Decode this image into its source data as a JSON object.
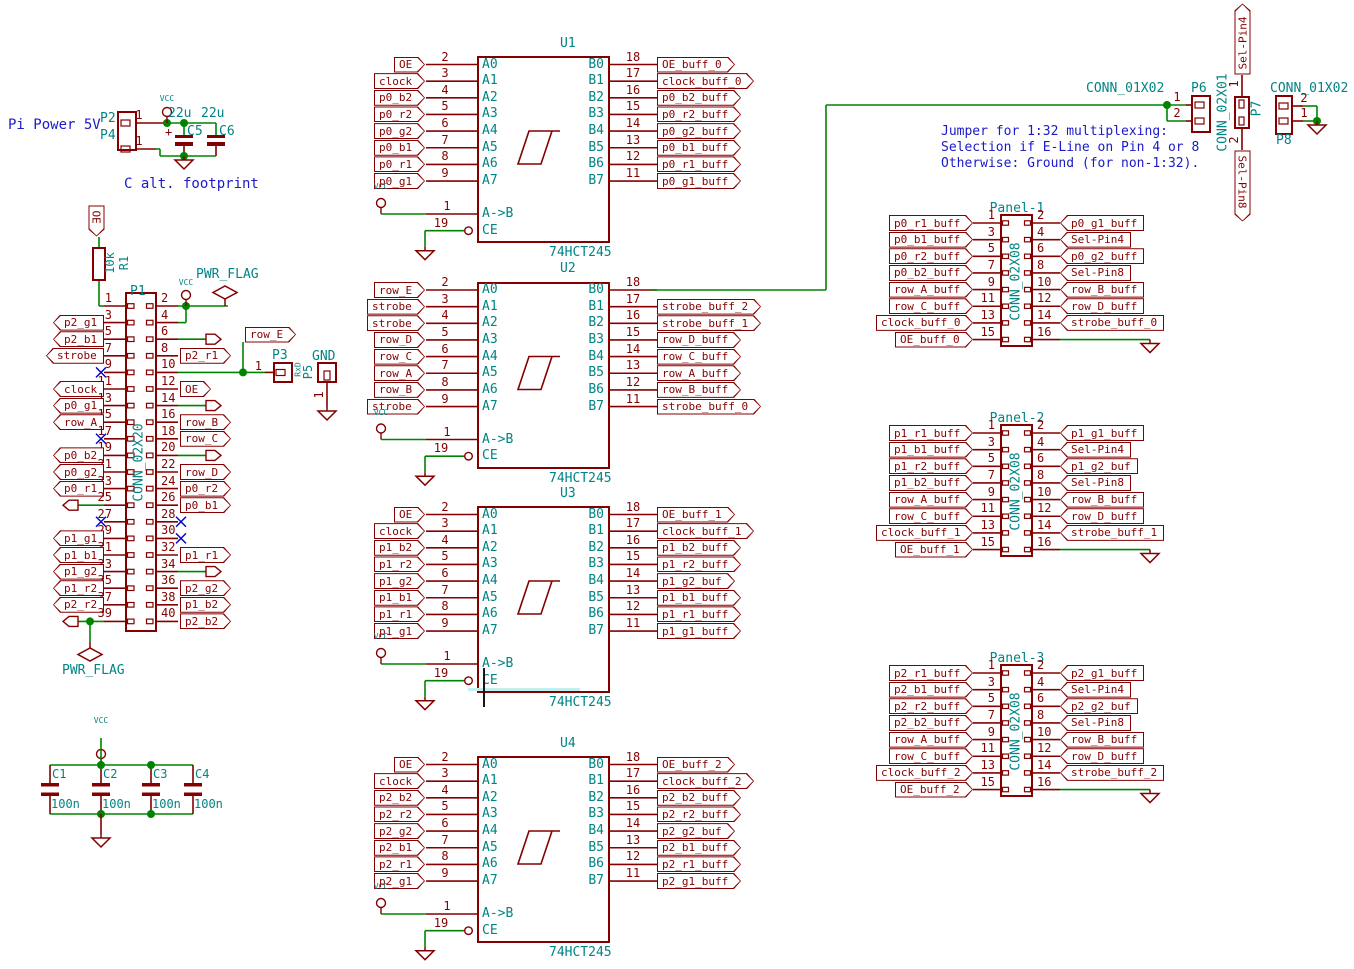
{
  "title_texts": {
    "pi_power": "Pi Power 5V",
    "c_alt": "C alt. footprint",
    "note1": "Jumper for 1:32 multiplexing:",
    "note2": "Selection if E-Line on Pin 4 or 8",
    "note3": "Otherwise: Ground (for non-1:32)."
  },
  "sym": {
    "vcc": "VCC",
    "pwr_flag": "PWR_FLAG"
  },
  "power_in": {
    "p2_ref": "P2",
    "p4_ref": "P4",
    "pin": "1",
    "plus": "+",
    "c5_ref": "C5",
    "c5_val": "22u",
    "c6_ref": "C6",
    "c6_val": "22u"
  },
  "pullup": {
    "net": "OE",
    "r_ref": "R1",
    "r_val": "10k"
  },
  "serial": {
    "p3_ref": "P3",
    "p3_val": "RxD",
    "p5_ref": "P5",
    "p5_val": "GND",
    "pin": "1"
  },
  "decoupling": {
    "refs": [
      "C1",
      "C2",
      "C3",
      "C4"
    ],
    "val": "100n"
  },
  "p1": {
    "ref": "P1",
    "val": "CONN_02X20",
    "row_e": "row_E",
    "rows": [
      {
        "lp": "1",
        "rp": "2"
      },
      {
        "lp": "3",
        "ln": "p2_g1",
        "rp": "4"
      },
      {
        "lp": "5",
        "ln": "p2_b1",
        "rp": "6"
      },
      {
        "lp": "7",
        "ln": "strobe",
        "rp": "8",
        "rn": "p2_r1"
      },
      {
        "lp": "9",
        "rp": "10"
      },
      {
        "lp": "11",
        "ln": "clock",
        "rp": "12",
        "rn": "OE"
      },
      {
        "lp": "13",
        "ln": "p0_g1",
        "rp": "14"
      },
      {
        "lp": "15",
        "ln": "row_A",
        "rp": "16",
        "rn": "row_B"
      },
      {
        "lp": "17",
        "rp": "18",
        "rn": "row_C"
      },
      {
        "lp": "19",
        "ln": "p0_b2",
        "rp": "20"
      },
      {
        "lp": "21",
        "ln": "p0_g2",
        "rp": "22",
        "rn": "row_D"
      },
      {
        "lp": "23",
        "ln": "p0_r1",
        "rp": "24",
        "rn": "p0_r2"
      },
      {
        "lp": "25",
        "rp": "26",
        "rn": "p0_b1"
      },
      {
        "lp": "27",
        "rp": "28"
      },
      {
        "lp": "29",
        "ln": "p1_g1",
        "rp": "30"
      },
      {
        "lp": "31",
        "ln": "p1_b1",
        "rp": "32",
        "rn": "p1_r1"
      },
      {
        "lp": "33",
        "ln": "p1_g2",
        "rp": "34"
      },
      {
        "lp": "35",
        "ln": "p1_r2",
        "rp": "36",
        "rn": "p2_g2"
      },
      {
        "lp": "37",
        "ln": "p2_r2",
        "rp": "38",
        "rn": "p1_b2"
      },
      {
        "lp": "39",
        "rp": "40",
        "rn": "p2_b2"
      }
    ]
  },
  "chips": [
    {
      "ref": "U1",
      "val": "74HCT245",
      "pin1": "1",
      "pin19": "19",
      "ab": "A->B",
      "ce": "CE",
      "left": [
        {
          "p": "2",
          "n": "A0",
          "l": "OE"
        },
        {
          "p": "3",
          "n": "A1",
          "l": "clock"
        },
        {
          "p": "4",
          "n": "A2",
          "l": "p0_b2"
        },
        {
          "p": "5",
          "n": "A3",
          "l": "p0_r2"
        },
        {
          "p": "6",
          "n": "A4",
          "l": "p0_g2"
        },
        {
          "p": "7",
          "n": "A5",
          "l": "p0_b1"
        },
        {
          "p": "8",
          "n": "A6",
          "l": "p0_r1"
        },
        {
          "p": "9",
          "n": "A7",
          "l": "p0_g1"
        }
      ],
      "right": [
        {
          "p": "18",
          "n": "B0",
          "l": "OE_buff_0"
        },
        {
          "p": "17",
          "n": "B1",
          "l": "clock_buff_0"
        },
        {
          "p": "16",
          "n": "B2",
          "l": "p0_b2_buff"
        },
        {
          "p": "15",
          "n": "B3",
          "l": "p0_r2_buff"
        },
        {
          "p": "14",
          "n": "B4",
          "l": "p0_g2_buff"
        },
        {
          "p": "13",
          "n": "B5",
          "l": "p0_b1_buff"
        },
        {
          "p": "12",
          "n": "B6",
          "l": "p0_r1_buff"
        },
        {
          "p": "11",
          "n": "B7",
          "l": "p0_g1_buff"
        }
      ]
    },
    {
      "ref": "U2",
      "val": "74HCT245",
      "pin1": "1",
      "pin19": "19",
      "ab": "A->B",
      "ce": "CE",
      "left": [
        {
          "p": "2",
          "n": "A0",
          "l": "row_E"
        },
        {
          "p": "3",
          "n": "A1",
          "l": "strobe"
        },
        {
          "p": "4",
          "n": "A2",
          "l": "strobe"
        },
        {
          "p": "5",
          "n": "A3",
          "l": "row_D"
        },
        {
          "p": "6",
          "n": "A4",
          "l": "row_C"
        },
        {
          "p": "7",
          "n": "A5",
          "l": "row_A"
        },
        {
          "p": "8",
          "n": "A6",
          "l": "row_B"
        },
        {
          "p": "9",
          "n": "A7",
          "l": "strobe"
        }
      ],
      "right": [
        {
          "p": "18",
          "n": "B0",
          "l": null
        },
        {
          "p": "17",
          "n": "B1",
          "l": "strobe_buff_2"
        },
        {
          "p": "16",
          "n": "B2",
          "l": "strobe_buff_1"
        },
        {
          "p": "15",
          "n": "B3",
          "l": "row_D_buff"
        },
        {
          "p": "14",
          "n": "B4",
          "l": "row_C_buff"
        },
        {
          "p": "13",
          "n": "B5",
          "l": "row_A_buff"
        },
        {
          "p": "12",
          "n": "B6",
          "l": "row_B_buff"
        },
        {
          "p": "11",
          "n": "B7",
          "l": "strobe_buff_0"
        }
      ]
    },
    {
      "ref": "U3",
      "val": "74HCT245",
      "pin1": "1",
      "pin19": "19",
      "ab": "A->B",
      "ce": "CE",
      "left": [
        {
          "p": "2",
          "n": "A0",
          "l": "OE"
        },
        {
          "p": "3",
          "n": "A1",
          "l": "clock"
        },
        {
          "p": "4",
          "n": "A2",
          "l": "p1_b2"
        },
        {
          "p": "5",
          "n": "A3",
          "l": "p1_r2"
        },
        {
          "p": "6",
          "n": "A4",
          "l": "p1_g2"
        },
        {
          "p": "7",
          "n": "A5",
          "l": "p1_b1"
        },
        {
          "p": "8",
          "n": "A6",
          "l": "p1_r1"
        },
        {
          "p": "9",
          "n": "A7",
          "l": "p1_g1"
        }
      ],
      "right": [
        {
          "p": "18",
          "n": "B0",
          "l": "OE_buff_1"
        },
        {
          "p": "17",
          "n": "B1",
          "l": "clock_buff_1"
        },
        {
          "p": "16",
          "n": "B2",
          "l": "p1_b2_buff"
        },
        {
          "p": "15",
          "n": "B3",
          "l": "p1_r2_buff"
        },
        {
          "p": "14",
          "n": "B4",
          "l": "p1_g2_buf"
        },
        {
          "p": "13",
          "n": "B5",
          "l": "p1_b1_buff"
        },
        {
          "p": "12",
          "n": "B6",
          "l": "p1_r1_buff"
        },
        {
          "p": "11",
          "n": "B7",
          "l": "p1_g1_buff"
        }
      ]
    },
    {
      "ref": "U4",
      "val": "74HCT245",
      "pin1": "1",
      "pin19": "19",
      "ab": "A->B",
      "ce": "CE",
      "left": [
        {
          "p": "2",
          "n": "A0",
          "l": "OE"
        },
        {
          "p": "3",
          "n": "A1",
          "l": "clock"
        },
        {
          "p": "4",
          "n": "A2",
          "l": "p2_b2"
        },
        {
          "p": "5",
          "n": "A3",
          "l": "p2_r2"
        },
        {
          "p": "6",
          "n": "A4",
          "l": "p2_g2"
        },
        {
          "p": "7",
          "n": "A5",
          "l": "p2_b1"
        },
        {
          "p": "8",
          "n": "A6",
          "l": "p2_r1"
        },
        {
          "p": "9",
          "n": "A7",
          "l": "p2_g1"
        }
      ],
      "right": [
        {
          "p": "18",
          "n": "B0",
          "l": "OE_buff_2"
        },
        {
          "p": "17",
          "n": "B1",
          "l": "clock_buff_2"
        },
        {
          "p": "16",
          "n": "B2",
          "l": "p2_b2_buff"
        },
        {
          "p": "15",
          "n": "B3",
          "l": "p2_r2_buff"
        },
        {
          "p": "14",
          "n": "B4",
          "l": "p2_g2_buf"
        },
        {
          "p": "13",
          "n": "B5",
          "l": "p2_b1_buff"
        },
        {
          "p": "12",
          "n": "B6",
          "l": "p2_r1_buff"
        },
        {
          "p": "11",
          "n": "B7",
          "l": "p2_g1_buff"
        }
      ]
    }
  ],
  "panels": [
    {
      "ref": "Panel-1",
      "val": "CONN_02X08",
      "left": [
        {
          "p": "1",
          "l": "p0_r1_buff"
        },
        {
          "p": "3",
          "l": "p0_b1_buff"
        },
        {
          "p": "5",
          "l": "p0_r2_buff"
        },
        {
          "p": "7",
          "l": "p0_b2_buff"
        },
        {
          "p": "9",
          "l": "row_A_buff"
        },
        {
          "p": "11",
          "l": "row_C_buff"
        },
        {
          "p": "13",
          "l": "clock_buff_0"
        },
        {
          "p": "15",
          "l": "OE_buff_0"
        }
      ],
      "right": [
        {
          "p": "2",
          "l": "p0_g1_buff"
        },
        {
          "p": "4",
          "l": "Sel-Pin4"
        },
        {
          "p": "6",
          "l": "p0_g2_buff"
        },
        {
          "p": "8",
          "l": "Sel-Pin8"
        },
        {
          "p": "10",
          "l": "row_B_buff"
        },
        {
          "p": "12",
          "l": "row_D_buff"
        },
        {
          "p": "14",
          "l": "strobe_buff_0"
        },
        {
          "p": "16",
          "l": null
        }
      ]
    },
    {
      "ref": "Panel-2",
      "val": "CONN_02X08",
      "left": [
        {
          "p": "1",
          "l": "p1_r1_buff"
        },
        {
          "p": "3",
          "l": "p1_b1_buff"
        },
        {
          "p": "5",
          "l": "p1_r2_buff"
        },
        {
          "p": "7",
          "l": "p1_b2_buff"
        },
        {
          "p": "9",
          "l": "row_A_buff"
        },
        {
          "p": "11",
          "l": "row_C_buff"
        },
        {
          "p": "13",
          "l": "clock_buff_1"
        },
        {
          "p": "15",
          "l": "OE_buff_1"
        }
      ],
      "right": [
        {
          "p": "2",
          "l": "p1_g1_buff"
        },
        {
          "p": "4",
          "l": "Sel-Pin4"
        },
        {
          "p": "6",
          "l": "p1_g2_buf"
        },
        {
          "p": "8",
          "l": "Sel-Pin8"
        },
        {
          "p": "10",
          "l": "row_B_buff"
        },
        {
          "p": "12",
          "l": "row_D_buff"
        },
        {
          "p": "14",
          "l": "strobe_buff_1"
        },
        {
          "p": "16",
          "l": null
        }
      ]
    },
    {
      "ref": "Panel-3",
      "val": "CONN_02X08",
      "left": [
        {
          "p": "1",
          "l": "p2_r1_buff"
        },
        {
          "p": "3",
          "l": "p2_b1_buff"
        },
        {
          "p": "5",
          "l": "p2_r2_buff"
        },
        {
          "p": "7",
          "l": "p2_b2_buff"
        },
        {
          "p": "9",
          "l": "row_A_buff"
        },
        {
          "p": "11",
          "l": "row_C_buff"
        },
        {
          "p": "13",
          "l": "clock_buff_2"
        },
        {
          "p": "15",
          "l": "OE_buff_2"
        }
      ],
      "right": [
        {
          "p": "2",
          "l": "p2_g1_buff"
        },
        {
          "p": "4",
          "l": "Sel-Pin4"
        },
        {
          "p": "6",
          "l": "p2_g2_buf"
        },
        {
          "p": "8",
          "l": "Sel-Pin8"
        },
        {
          "p": "10",
          "l": "row_B_buff"
        },
        {
          "p": "12",
          "l": "row_D_buff"
        },
        {
          "p": "14",
          "l": "strobe_buff_2"
        },
        {
          "p": "16",
          "l": null
        }
      ]
    }
  ],
  "jumper": {
    "p6_ref": "P6",
    "p6_val": "CONN_01X02",
    "p6_pins": [
      "1",
      "2"
    ],
    "p7_ref": "P7",
    "p7_val": "CONN_02X01",
    "p7_pins": [
      "1",
      "2"
    ],
    "p8_ref": "P8",
    "p8_val": "CONN_01X02",
    "p8_pins": [
      "2",
      "1"
    ],
    "sel4": "Sel-Pin4",
    "sel8": "Sel-Pin8"
  }
}
